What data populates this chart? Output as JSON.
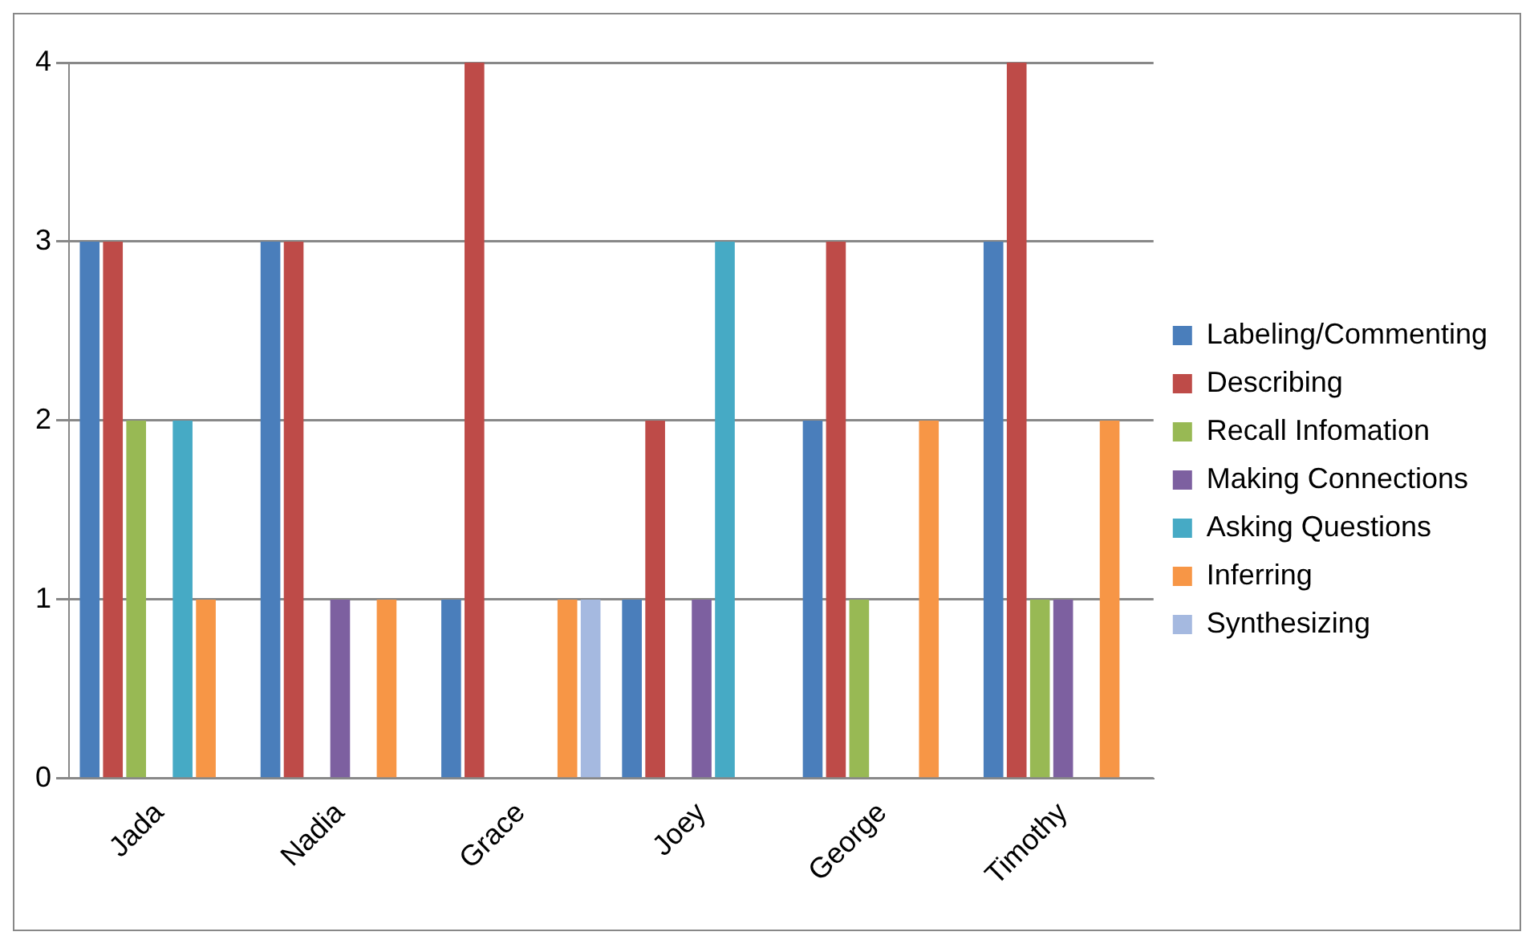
{
  "chart_data": {
    "type": "bar",
    "categories": [
      "Jada",
      "Nadia",
      "Grace",
      "Joey",
      "George",
      "Timothy"
    ],
    "series": [
      {
        "name": "Labeling/Commenting",
        "color": "#4a7ebb",
        "values": [
          3,
          3,
          1,
          1,
          2,
          3
        ]
      },
      {
        "name": "Describing",
        "color": "#be4b48",
        "values": [
          3,
          3,
          4,
          2,
          3,
          4
        ]
      },
      {
        "name": "Recall Infomation",
        "color": "#98b954",
        "values": [
          2,
          0,
          0,
          0,
          1,
          1
        ]
      },
      {
        "name": "Making Connections",
        "color": "#7d60a0",
        "values": [
          0,
          1,
          0,
          1,
          0,
          1
        ]
      },
      {
        "name": "Asking Questions",
        "color": "#46aac5",
        "values": [
          2,
          0,
          0,
          3,
          0,
          0
        ]
      },
      {
        "name": "Inferring",
        "color": "#f79646",
        "values": [
          1,
          1,
          1,
          0,
          2,
          2
        ]
      },
      {
        "name": "Synthesizing",
        "color": "#a5b9e0",
        "values": [
          0,
          0,
          1,
          0,
          0,
          0
        ]
      }
    ],
    "ylim": [
      0,
      4
    ],
    "yticks": [
      0,
      1,
      2,
      3,
      4
    ],
    "grid": "y",
    "legend": "right"
  }
}
